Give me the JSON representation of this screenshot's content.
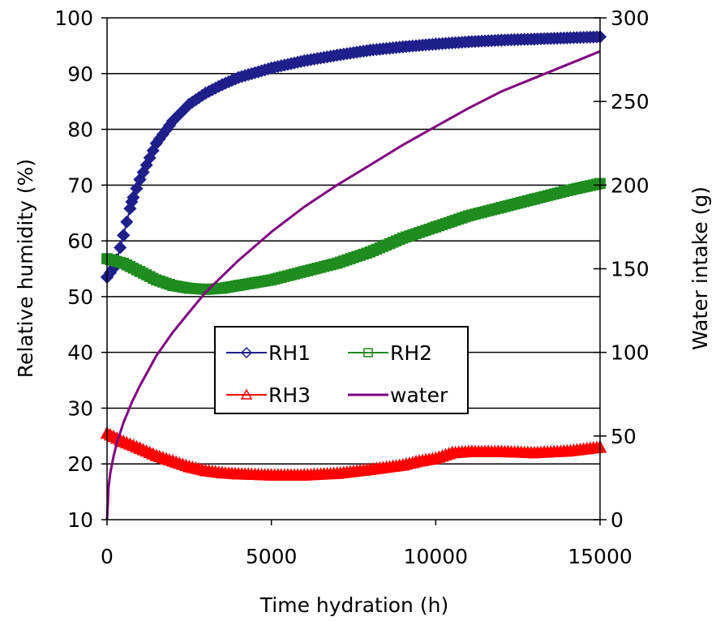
{
  "chart_data": {
    "type": "line",
    "title": "",
    "xlabel": "Time hydration (h)",
    "ylabel": "Relative humidity  (%)",
    "y2label": "Water intake (g)",
    "xlim": [
      0,
      15000
    ],
    "ylim": [
      10,
      100
    ],
    "y2lim": [
      0,
      300
    ],
    "xticks": [
      "0",
      "5000",
      "10000",
      "15000"
    ],
    "yticks": [
      "10",
      "20",
      "30",
      "40",
      "50",
      "60",
      "70",
      "80",
      "90",
      "100"
    ],
    "y2ticks": [
      "0",
      "50",
      "100",
      "150",
      "200",
      "250",
      "300"
    ],
    "grid": "horizontal major gridlines",
    "legend": {
      "placement": "center",
      "entries": [
        "RH1",
        "RH2",
        "RH3",
        "water"
      ]
    },
    "series": [
      {
        "name": "RH1",
        "axis": "left",
        "color": "#1f1f8c",
        "marker": "diamond",
        "x": [
          0,
          250,
          500,
          750,
          1000,
          1500,
          2000,
          2500,
          3000,
          3500,
          4000,
          5000,
          6000,
          7000,
          8000,
          9000,
          10000,
          11000,
          12000,
          13000,
          14000,
          15000
        ],
        "y": [
          53.5,
          55.5,
          61,
          67,
          71,
          77.5,
          81.5,
          84.5,
          86.5,
          88,
          89.3,
          91,
          92.3,
          93.3,
          94.2,
          94.8,
          95.3,
          95.7,
          96,
          96.2,
          96.4,
          96.6
        ]
      },
      {
        "name": "RH2",
        "axis": "left",
        "color": "#1e8c1e",
        "marker": "square",
        "x": [
          0,
          500,
          1000,
          1500,
          2000,
          2500,
          3000,
          3500,
          4000,
          4500,
          5000,
          6000,
          7000,
          8000,
          9000,
          10000,
          11000,
          12000,
          13000,
          14000,
          15000
        ],
        "y": [
          56.8,
          56,
          54.5,
          53,
          52,
          51.5,
          51.3,
          51.5,
          52,
          52.5,
          53,
          54.5,
          56,
          58,
          60.5,
          62.5,
          64.5,
          66,
          67.5,
          69,
          70.3
        ]
      },
      {
        "name": "RH3",
        "axis": "left",
        "color": "#ff0000",
        "marker": "triangle",
        "x": [
          0,
          500,
          1000,
          1500,
          2000,
          2500,
          3000,
          3500,
          4000,
          5000,
          6000,
          7000,
          8000,
          9000,
          9500,
          10000,
          10500,
          11000,
          12000,
          13000,
          14000,
          15000
        ],
        "y": [
          25.5,
          24,
          22.8,
          21.5,
          20.5,
          19.5,
          18.8,
          18.4,
          18.2,
          18,
          18,
          18.3,
          19,
          19.8,
          20.5,
          21,
          22,
          22.2,
          22.2,
          22,
          22.3,
          23
        ]
      },
      {
        "name": "water",
        "axis": "right",
        "color": "#800080",
        "marker": "none",
        "x": [
          0,
          50,
          100,
          200,
          300,
          500,
          750,
          1000,
          1500,
          2000,
          2500,
          3000,
          4000,
          5000,
          6000,
          7000,
          8000,
          9000,
          10000,
          11000,
          12000,
          13000,
          14000,
          15000
        ],
        "y": [
          0,
          20,
          28,
          38,
          46,
          58,
          70,
          80,
          98,
          112,
          124,
          136,
          155,
          172,
          187,
          200,
          212,
          224,
          235,
          246,
          256,
          264,
          272,
          280
        ]
      }
    ]
  }
}
